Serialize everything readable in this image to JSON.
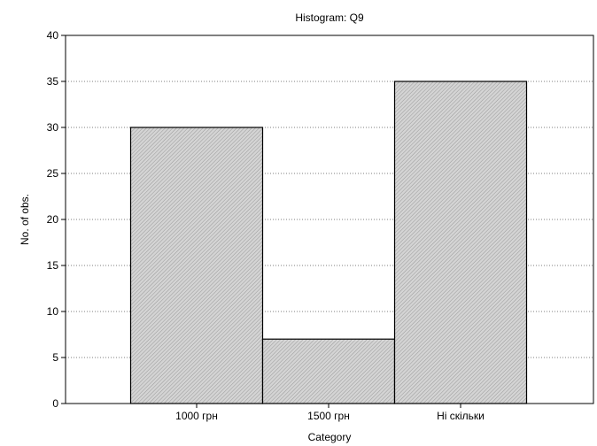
{
  "chart_data": {
    "type": "bar",
    "title": "Histogram: Q9",
    "xlabel": "Category",
    "ylabel": "No. of obs.",
    "categories": [
      "1000 грн",
      "1500 грн",
      "Ні скільки"
    ],
    "values": [
      30,
      7,
      35
    ],
    "ylim": [
      0,
      40
    ],
    "yticks": [
      0,
      5,
      10,
      15,
      20,
      25,
      30,
      35,
      40
    ],
    "grid": "dotted horizontal",
    "legend": "none",
    "bar_fill": "#c8c8c8",
    "bar_edge": "#000000"
  }
}
